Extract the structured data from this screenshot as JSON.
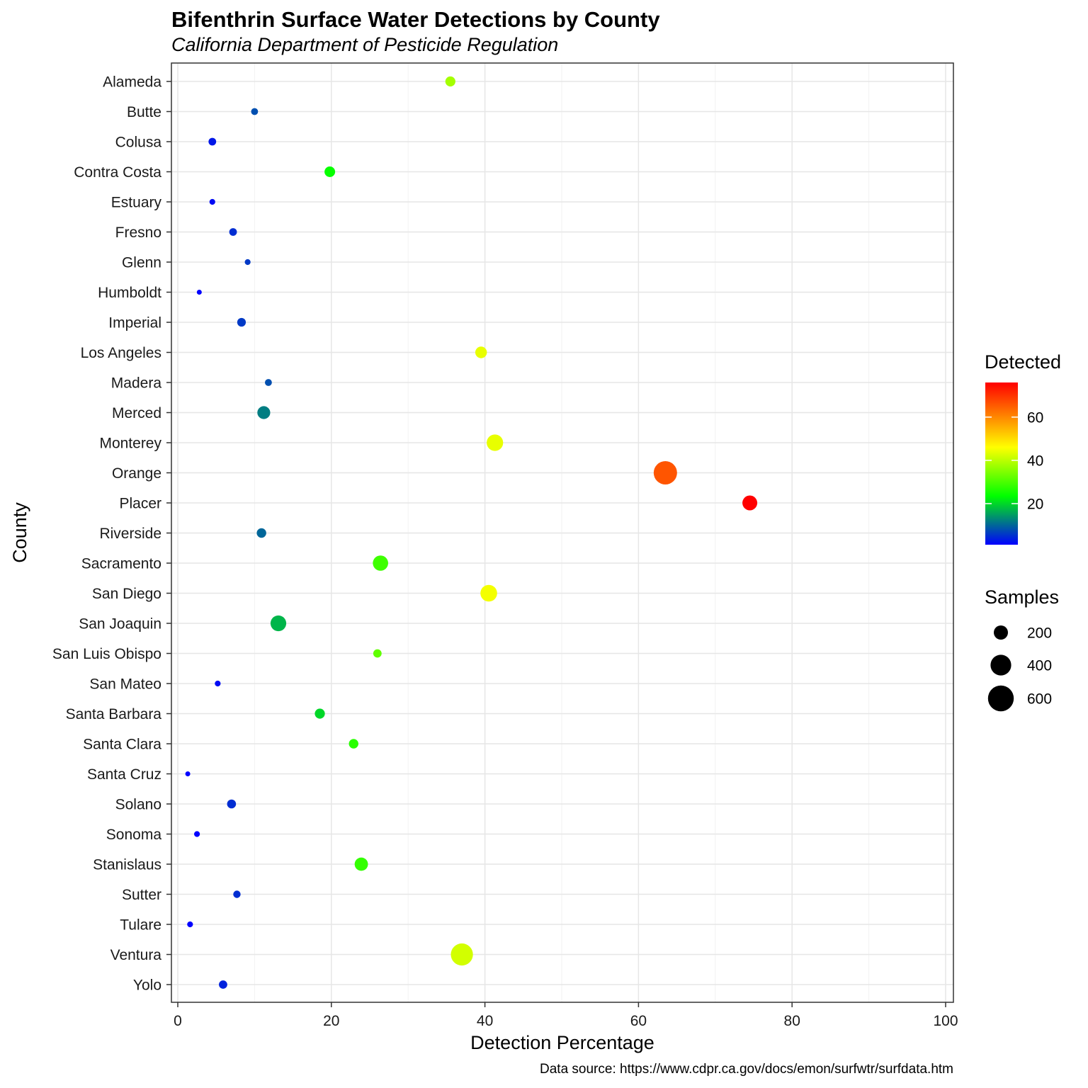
{
  "title": "Bifenthrin Surface Water Detections by County",
  "subtitle": "California Department of Pesticide Regulation",
  "caption": "Data source: https://www.cdpr.ca.gov/docs/emon/surfwtr/surfdata.htm",
  "chart_data": {
    "type": "scatter",
    "title": "Bifenthrin Surface Water Detections by County",
    "subtitle": "California Department of Pesticide Regulation",
    "xlabel": "Detection Percentage",
    "ylabel": "County",
    "xlim": [
      0,
      100
    ],
    "xticks": [
      0,
      20,
      40,
      60,
      80,
      100
    ],
    "grid": true,
    "color_legend": {
      "title": "Detected",
      "range": [
        1,
        76
      ],
      "ticks": [
        20,
        40,
        60
      ],
      "colors": [
        "#0000ff",
        "#00ff00",
        "#ffff00",
        "#ff0000"
      ],
      "placement": "right"
    },
    "size_legend": {
      "title": "Samples",
      "values": [
        200,
        400,
        600
      ],
      "placement": "right"
    },
    "points": [
      {
        "county": "Alameda",
        "x": 35.5,
        "detected": 38,
        "samples": 110
      },
      {
        "county": "Butte",
        "x": 10.0,
        "detected": 8,
        "samples": 60
      },
      {
        "county": "Colusa",
        "x": 4.5,
        "detected": 3,
        "samples": 70
      },
      {
        "county": "Contra Costa",
        "x": 19.8,
        "detected": 24,
        "samples": 120
      },
      {
        "county": "Estuary",
        "x": 4.5,
        "detected": 2,
        "samples": 45
      },
      {
        "county": "Fresno",
        "x": 7.2,
        "detected": 5,
        "samples": 70
      },
      {
        "county": "Glenn",
        "x": 9.1,
        "detected": 6,
        "samples": 45
      },
      {
        "county": "Humboldt",
        "x": 2.8,
        "detected": 1,
        "samples": 35
      },
      {
        "county": "Imperial",
        "x": 8.3,
        "detected": 6,
        "samples": 85
      },
      {
        "county": "Los Angeles",
        "x": 39.5,
        "detected": 44,
        "samples": 140
      },
      {
        "county": "Madera",
        "x": 11.8,
        "detected": 8,
        "samples": 60
      },
      {
        "county": "Merced",
        "x": 11.2,
        "detected": 12,
        "samples": 170
      },
      {
        "county": "Monterey",
        "x": 41.3,
        "detected": 44,
        "samples": 260
      },
      {
        "county": "Orange",
        "x": 63.5,
        "detected": 66,
        "samples": 500
      },
      {
        "county": "Placer",
        "x": 74.5,
        "detected": 76,
        "samples": 220
      },
      {
        "county": "Riverside",
        "x": 10.9,
        "detected": 10,
        "samples": 100
      },
      {
        "county": "Sacramento",
        "x": 26.4,
        "detected": 29,
        "samples": 230
      },
      {
        "county": "San Diego",
        "x": 40.5,
        "detected": 45,
        "samples": 270
      },
      {
        "county": "San Joaquin",
        "x": 13.1,
        "detected": 17,
        "samples": 240
      },
      {
        "county": "San Luis Obispo",
        "x": 26.0,
        "detected": 32,
        "samples": 80
      },
      {
        "county": "San Mateo",
        "x": 5.2,
        "detected": 2,
        "samples": 45
      },
      {
        "county": "Santa Barbara",
        "x": 18.5,
        "detected": 20,
        "samples": 110
      },
      {
        "county": "Santa Clara",
        "x": 22.9,
        "detected": 27,
        "samples": 100
      },
      {
        "county": "Santa Cruz",
        "x": 1.3,
        "detected": 1,
        "samples": 35
      },
      {
        "county": "Solano",
        "x": 7.0,
        "detected": 5,
        "samples": 90
      },
      {
        "county": "Sonoma",
        "x": 2.5,
        "detected": 1,
        "samples": 45
      },
      {
        "county": "Stanislaus",
        "x": 23.9,
        "detected": 28,
        "samples": 180
      },
      {
        "county": "Sutter",
        "x": 7.7,
        "detected": 5,
        "samples": 65
      },
      {
        "county": "Tulare",
        "x": 1.6,
        "detected": 1,
        "samples": 45
      },
      {
        "county": "Ventura",
        "x": 37.0,
        "detected": 42,
        "samples": 450
      },
      {
        "county": "Yolo",
        "x": 5.9,
        "detected": 4,
        "samples": 80
      }
    ]
  }
}
